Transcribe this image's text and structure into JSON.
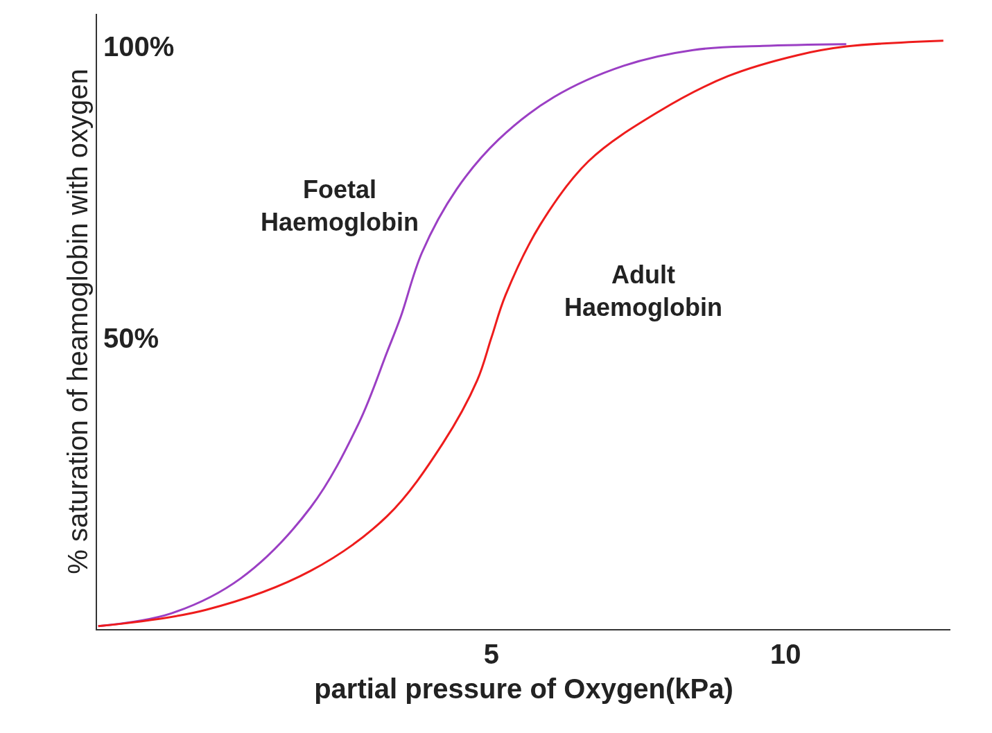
{
  "chart_data": {
    "type": "line",
    "xlabel": "partial pressure of Oxygen(kPa)",
    "ylabel": "% saturation of heamoglobin with oxygen",
    "xlim": [
      -1.7,
      12.8
    ],
    "ylim": [
      0,
      105.6
    ],
    "xticks": [
      5,
      10
    ],
    "yticks": [
      {
        "value": 50,
        "label": "50%"
      },
      {
        "value": 100,
        "label": "100%"
      }
    ],
    "legend": false,
    "marker": "none",
    "line_style": "solid",
    "series": [
      {
        "name": "Foetal Haemoglobin",
        "color": "#9b3fc4",
        "x": [
          -1.68,
          -0.44,
          0.74,
          1.93,
          2.75,
          3.23,
          3.46,
          3.82,
          4.41,
          5.12,
          6.06,
          7.25,
          8.43,
          9.61,
          11.03
        ],
        "values": [
          0.5,
          2.7,
          8.7,
          20.9,
          35.4,
          47.6,
          53.6,
          64.6,
          75.5,
          84.0,
          91.3,
          96.7,
          99.4,
          100.1,
          100.4
        ]
      },
      {
        "name": "Adult Haemoglobin",
        "color": "#ee1c1c",
        "x": [
          -1.68,
          0.15,
          1.93,
          3.23,
          4.17,
          4.76,
          5.0,
          5.24,
          5.83,
          6.65,
          7.84,
          9.02,
          10.2,
          11.03,
          12.68
        ],
        "values": [
          0.5,
          3.3,
          10.0,
          19.4,
          31.8,
          42.7,
          50.0,
          57.3,
          69.4,
          80.3,
          88.8,
          94.9,
          98.5,
          100.0,
          101.0
        ]
      }
    ]
  }
}
